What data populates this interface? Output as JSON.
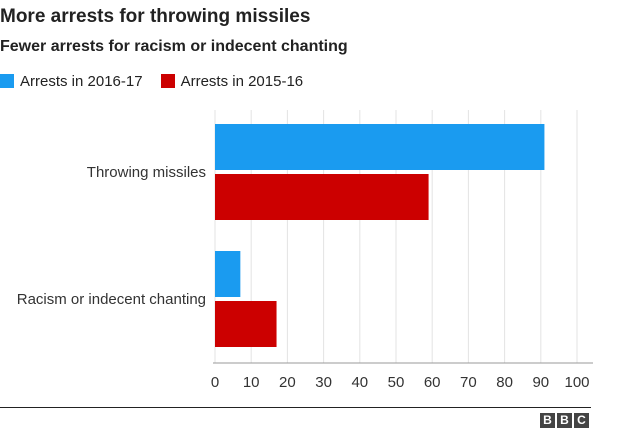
{
  "chart_data": {
    "type": "bar",
    "orientation": "horizontal",
    "title": "More arrests for throwing missiles",
    "subtitle": "Fewer arrests for racism or indecent chanting",
    "categories": [
      "Throwing missiles",
      "Racism or indecent chanting"
    ],
    "series": [
      {
        "name": "Arrests in 2016-17",
        "color": "#1a9bf0",
        "values": [
          91,
          7
        ]
      },
      {
        "name": "Arrests in 2015-16",
        "color": "#cc0000",
        "values": [
          59,
          17
        ]
      }
    ],
    "xlim": [
      0,
      100
    ],
    "xticks": [
      "0",
      "10",
      "20",
      "30",
      "40",
      "50",
      "60",
      "70",
      "80",
      "90",
      "100"
    ],
    "grid": true,
    "legend": "top-left",
    "xlabel": "",
    "ylabel": ""
  },
  "branding": {
    "letters": [
      "B",
      "B",
      "C"
    ]
  }
}
